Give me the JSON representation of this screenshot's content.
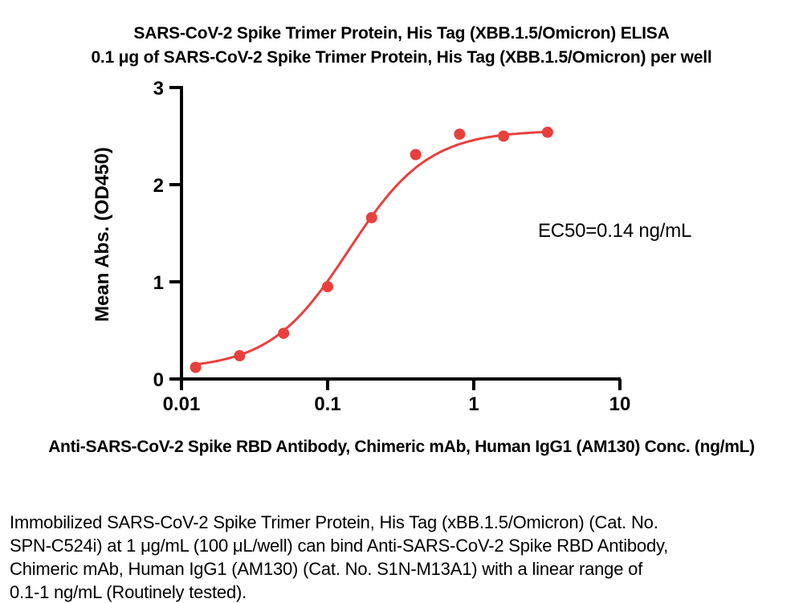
{
  "chart_data": {
    "type": "scatter",
    "title": "SARS-CoV-2 Spike Trimer Protein, His Tag (XBB.1.5/Omicron) ELISA",
    "subtitle": "0.1 μg of SARS-CoV-2 Spike Trimer Protein, His Tag (XBB.1.5/Omicron) per well",
    "xlabel": "Anti-SARS-CoV-2 Spike RBD Antibody, Chimeric mAb, Human IgG1 (AM130) Conc. (ng/mL)",
    "ylabel": "Mean Abs. (OD450)",
    "x_scale": "log10",
    "xlim": [
      0.01,
      10
    ],
    "ylim": [
      0,
      3
    ],
    "x_ticks": {
      "values": [
        0.01,
        0.1,
        1,
        10
      ],
      "labels": [
        "0.01",
        "0.1",
        "1",
        "10"
      ]
    },
    "y_ticks": {
      "values": [
        0,
        1,
        2,
        3
      ],
      "labels": [
        "0",
        "1",
        "2",
        "3"
      ]
    },
    "grid": false,
    "legend": "none",
    "series": [
      {
        "name": "Anti-SARS-CoV-2 Spike RBD Antibody, Chimeric mAb, Human IgG1 (AM130)",
        "x": [
          0.0125,
          0.025,
          0.05,
          0.1,
          0.2,
          0.4,
          0.8,
          1.6,
          3.2
        ],
        "y": [
          0.12,
          0.24,
          0.47,
          0.95,
          1.66,
          2.31,
          2.52,
          2.5,
          2.54
        ]
      }
    ],
    "curve_fit": {
      "model": "4PL",
      "bottom": 0.1,
      "top": 2.56,
      "ec50": 0.14,
      "hill": 1.6,
      "x_range": [
        0.0118,
        3.25
      ]
    },
    "annotation": "EC50=0.14 ng/mL",
    "colors": {
      "points": "#e8403d",
      "curve": "#e8403d",
      "axis": "#000000",
      "text": "#000000"
    }
  },
  "footer": {
    "lines": [
      "Immobilized SARS-CoV-2 Spike Trimer Protein, His Tag (xBB.1.5/Omicron) (Cat. No.",
      "SPN-C524i) at 1 μg/mL (100 μL/well) can bind Anti-SARS-CoV-2 Spike RBD Antibody,",
      "Chimeric mAb, Human IgG1 (AM130) (Cat. No. S1N-M13A1) with a linear range of",
      "0.1-1 ng/mL (Routinely tested)."
    ]
  }
}
